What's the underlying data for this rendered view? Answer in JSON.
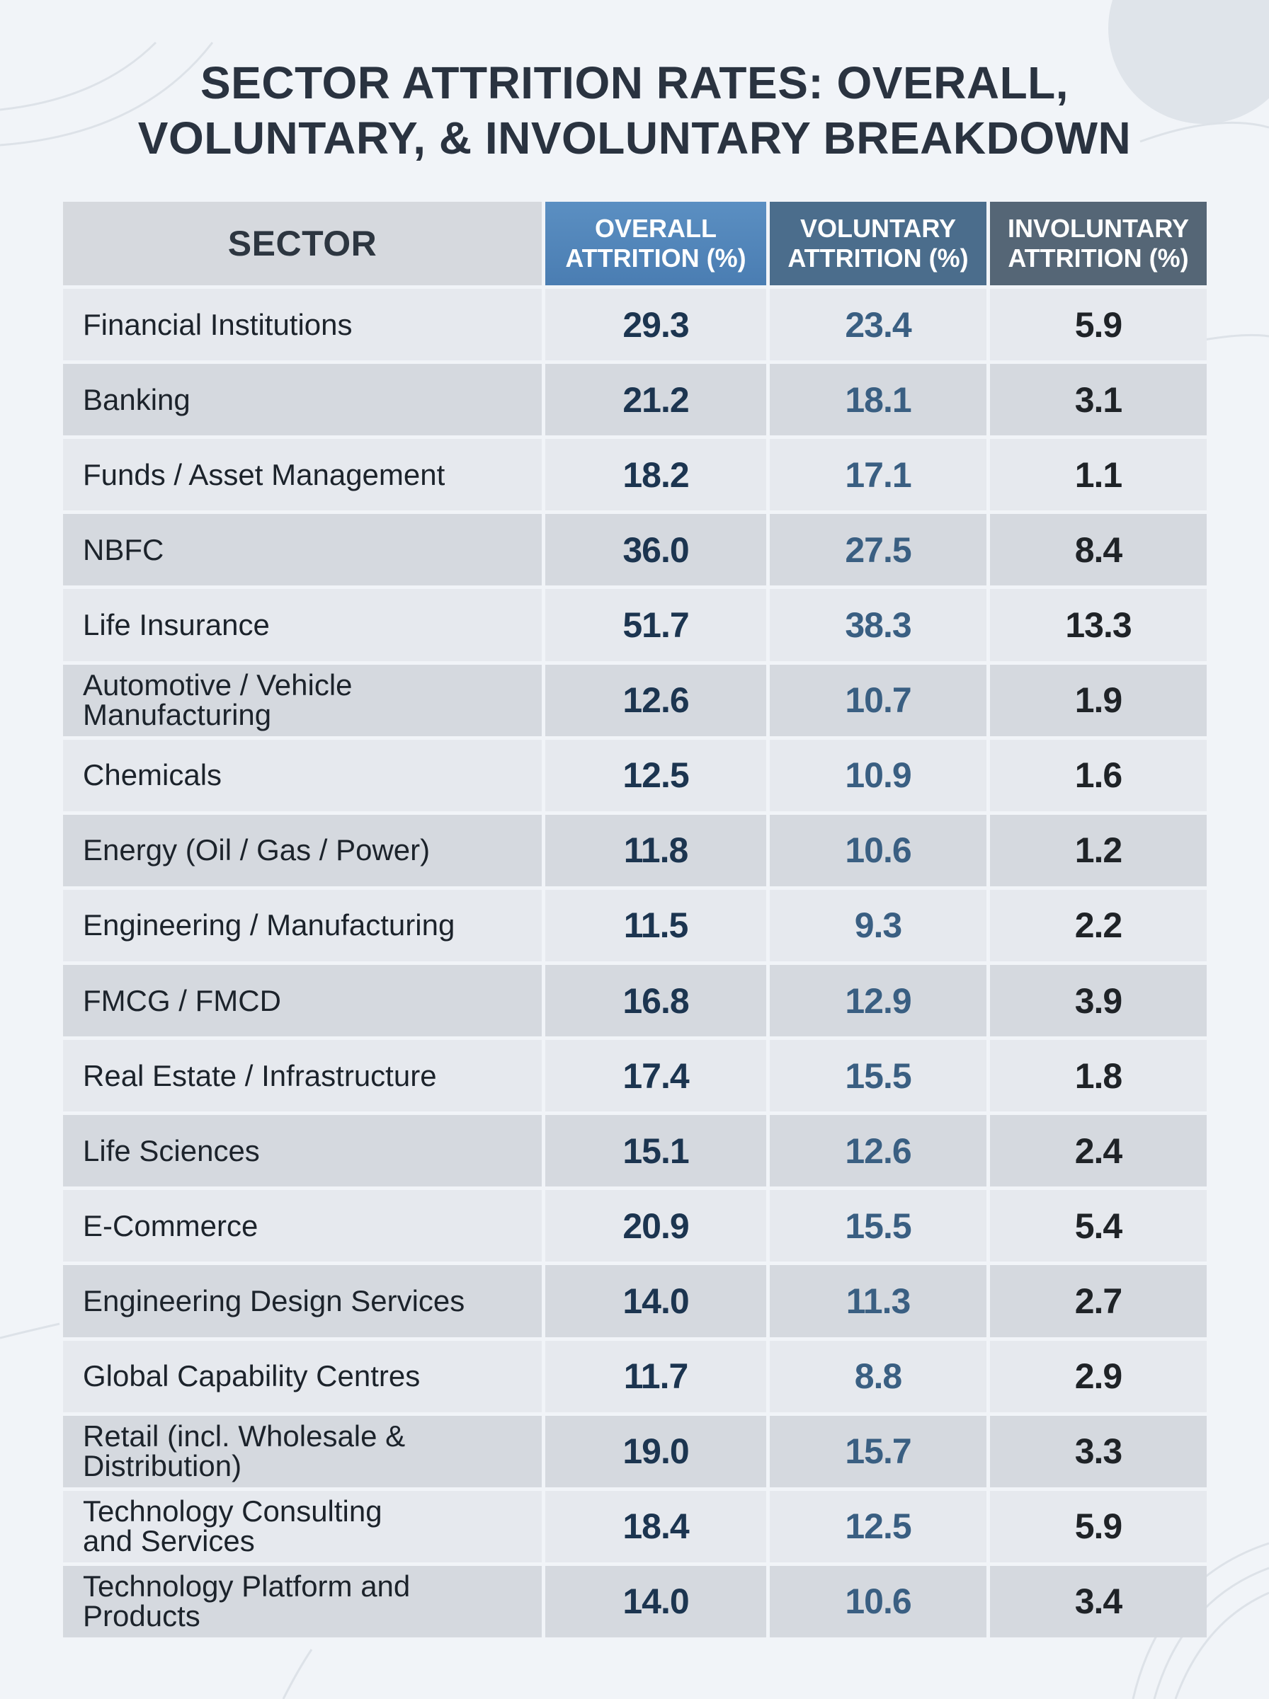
{
  "title": {
    "line1": "SECTOR ATTRITION RATES: OVERALL,",
    "line2": "VOLUNTARY, & INVOLUNTARY BREAKDOWN"
  },
  "table": {
    "headers": {
      "sector": "SECTOR",
      "overall": [
        "OVERALL",
        "ATTRITION (%)"
      ],
      "voluntary": [
        "VOLUNTARY",
        "ATTRITION (%)"
      ],
      "involuntary": [
        "INVOLUNTARY",
        "ATTRITION (%)"
      ]
    },
    "rows": [
      {
        "sector": [
          "Financial Institutions"
        ],
        "overall": "29.3",
        "voluntary": "23.4",
        "involuntary": "5.9"
      },
      {
        "sector": [
          "Banking"
        ],
        "overall": "21.2",
        "voluntary": "18.1",
        "involuntary": "3.1"
      },
      {
        "sector": [
          "Funds / Asset Management"
        ],
        "overall": "18.2",
        "voluntary": "17.1",
        "involuntary": "1.1"
      },
      {
        "sector": [
          "NBFC"
        ],
        "overall": "36.0",
        "voluntary": "27.5",
        "involuntary": "8.4"
      },
      {
        "sector": [
          "Life Insurance"
        ],
        "overall": "51.7",
        "voluntary": "38.3",
        "involuntary": "13.3"
      },
      {
        "sector": [
          "Automotive / Vehicle",
          "Manufacturing"
        ],
        "overall": "12.6",
        "voluntary": "10.7",
        "involuntary": "1.9"
      },
      {
        "sector": [
          "Chemicals"
        ],
        "overall": "12.5",
        "voluntary": "10.9",
        "involuntary": "1.6"
      },
      {
        "sector": [
          "Energy (Oil / Gas / Power)"
        ],
        "overall": "11.8",
        "voluntary": "10.6",
        "involuntary": "1.2"
      },
      {
        "sector": [
          "Engineering / Manufacturing"
        ],
        "overall": "11.5",
        "voluntary": "9.3",
        "involuntary": "2.2"
      },
      {
        "sector": [
          "FMCG / FMCD"
        ],
        "overall": "16.8",
        "voluntary": "12.9",
        "involuntary": "3.9"
      },
      {
        "sector": [
          "Real Estate / Infrastructure"
        ],
        "overall": "17.4",
        "voluntary": "15.5",
        "involuntary": "1.8"
      },
      {
        "sector": [
          "Life Sciences"
        ],
        "overall": "15.1",
        "voluntary": "12.6",
        "involuntary": "2.4"
      },
      {
        "sector": [
          "E-Commerce"
        ],
        "overall": "20.9",
        "voluntary": "15.5",
        "involuntary": "5.4"
      },
      {
        "sector": [
          "Engineering Design Services"
        ],
        "overall": "14.0",
        "voluntary": "11.3",
        "involuntary": "2.7"
      },
      {
        "sector": [
          "Global Capability Centres"
        ],
        "overall": "11.7",
        "voluntary": "8.8",
        "involuntary": "2.9"
      },
      {
        "sector": [
          "Retail (incl. Wholesale &",
          "Distribution)"
        ],
        "overall": "19.0",
        "voluntary": "15.7",
        "involuntary": "3.3"
      },
      {
        "sector": [
          "Technology Consulting",
          "and Services"
        ],
        "overall": "18.4",
        "voluntary": "12.5",
        "involuntary": "5.9"
      },
      {
        "sector": [
          "Technology Platform and",
          "Products"
        ],
        "overall": "14.0",
        "voluntary": "10.6",
        "involuntary": "3.4"
      }
    ]
  }
}
